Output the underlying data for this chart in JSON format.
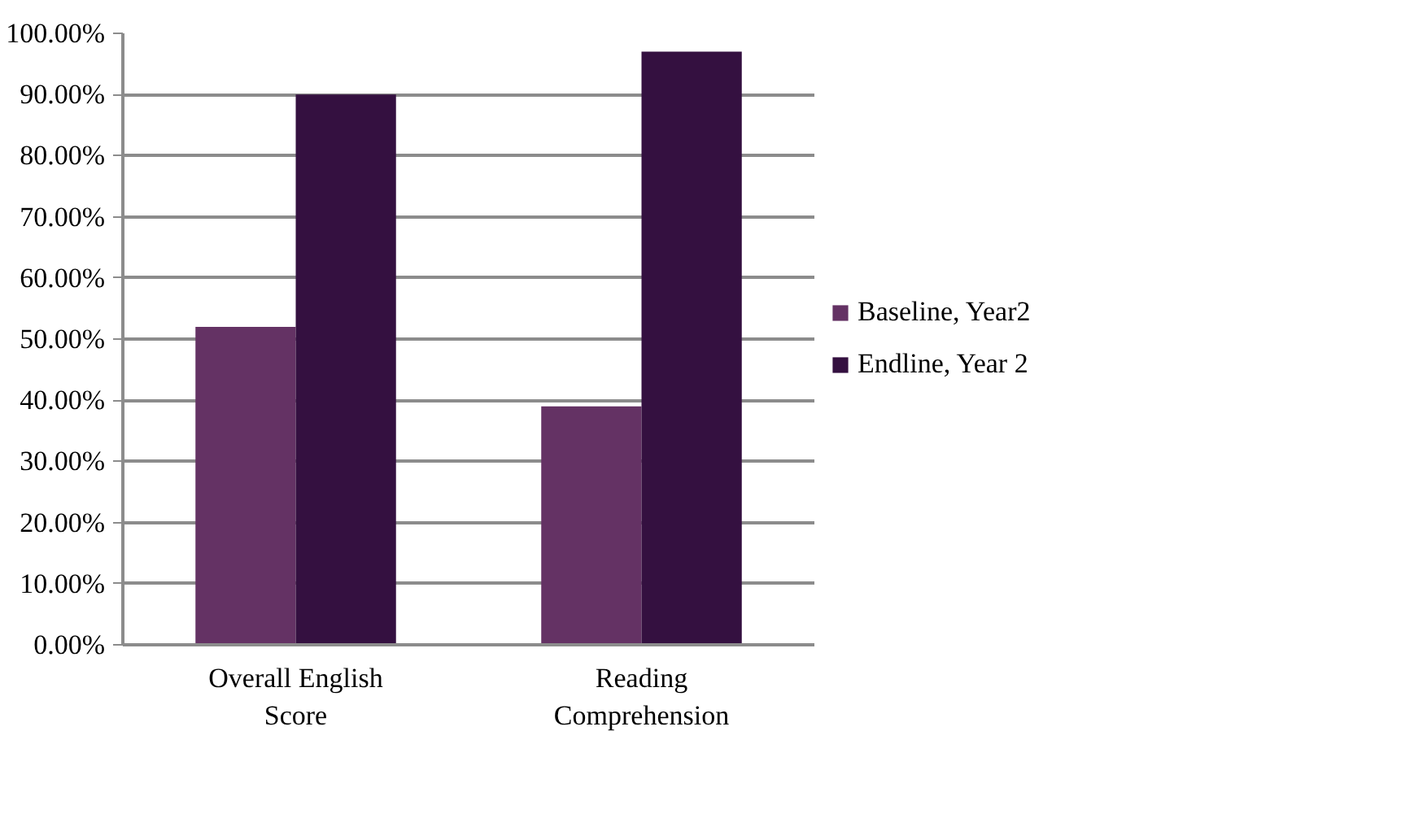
{
  "chart_data": {
    "type": "bar",
    "categories": [
      "Overall English\nScore",
      "Reading\nComprehension"
    ],
    "series": [
      {
        "name": "Baseline, Year2",
        "color": "#643264",
        "values": [
          52,
          39
        ]
      },
      {
        "name": "Endline, Year 2",
        "color": "#341040",
        "values": [
          90,
          97
        ]
      }
    ],
    "ylim": [
      0,
      100
    ],
    "yticks": [
      {
        "value": 0,
        "label": "0.00%"
      },
      {
        "value": 10,
        "label": "10.00%"
      },
      {
        "value": 20,
        "label": "20.00%"
      },
      {
        "value": 30,
        "label": "30.00%"
      },
      {
        "value": 40,
        "label": "40.00%"
      },
      {
        "value": 50,
        "label": "50.00%"
      },
      {
        "value": 60,
        "label": "60.00%"
      },
      {
        "value": 70,
        "label": "70.00%"
      },
      {
        "value": 80,
        "label": "80.00%"
      },
      {
        "value": 90,
        "label": "90.00%"
      },
      {
        "value": 100,
        "label": "100.00%"
      }
    ],
    "grid": "y",
    "legend": "right"
  }
}
